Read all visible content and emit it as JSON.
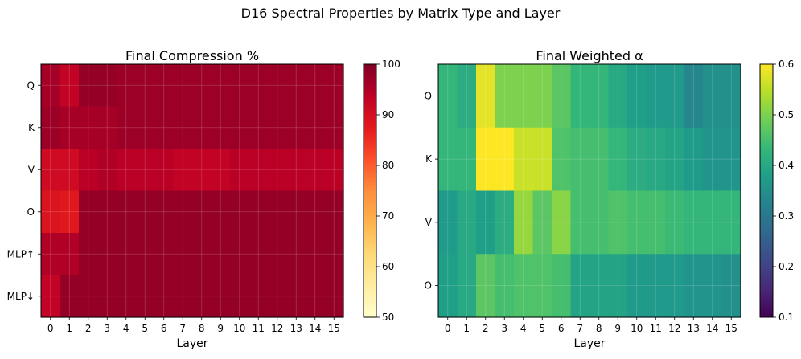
{
  "figure": {
    "suptitle": "D16 Spectral Properties by Matrix Type and Layer"
  },
  "colors": {
    "ylorrd": [
      "#ffffcc",
      "#ffeda0",
      "#fed976",
      "#feb24c",
      "#fd8d3c",
      "#fc4e2a",
      "#e31a1c",
      "#bd0026",
      "#800026"
    ],
    "viridis": [
      "#440154",
      "#482878",
      "#3e4989",
      "#31688e",
      "#26828e",
      "#1f9e89",
      "#35b779",
      "#6ece58",
      "#b5de2b",
      "#fde725"
    ],
    "grid": "#ffffff"
  },
  "chart_data": [
    {
      "type": "heatmap",
      "title": "Final Compression %",
      "xlabel": "Layer",
      "ylabel": "",
      "x": [
        "0",
        "1",
        "2",
        "3",
        "4",
        "5",
        "6",
        "7",
        "8",
        "9",
        "10",
        "11",
        "12",
        "13",
        "14",
        "15"
      ],
      "y": [
        "Q",
        "K",
        "V",
        "O",
        "MLP↑",
        "MLP↓"
      ],
      "colormap": "YlOrRd",
      "vmin": 50,
      "vmax": 100,
      "colorbar_ticks": [
        "50",
        "60",
        "70",
        "80",
        "90",
        "100"
      ],
      "grid": true,
      "values": [
        [
          96,
          93,
          98,
          98,
          97,
          97,
          97,
          97,
          97,
          97,
          97,
          97,
          97,
          97,
          97,
          97
        ],
        [
          97,
          96,
          96,
          96,
          97,
          97,
          97,
          97,
          97,
          97,
          97,
          97,
          97,
          97,
          97,
          97
        ],
        [
          91,
          91,
          94,
          95,
          94,
          94,
          94,
          93,
          93,
          93,
          94,
          94,
          94,
          94,
          94,
          94
        ],
        [
          89,
          88,
          98,
          98,
          98,
          98,
          98,
          98,
          98,
          98,
          98,
          98,
          98,
          98,
          98,
          98
        ],
        [
          95,
          95,
          98,
          98,
          98,
          98,
          98,
          98,
          98,
          98,
          98,
          98,
          98,
          98,
          98,
          98
        ],
        [
          93,
          98,
          98,
          98,
          98,
          98,
          98,
          98,
          98,
          98,
          98,
          98,
          98,
          98,
          98,
          98
        ]
      ]
    },
    {
      "type": "heatmap",
      "title": "Final Weighted α",
      "xlabel": "Layer",
      "ylabel": "",
      "x": [
        "0",
        "1",
        "2",
        "3",
        "4",
        "5",
        "6",
        "7",
        "8",
        "9",
        "10",
        "11",
        "12",
        "13",
        "14",
        "15"
      ],
      "y": [
        "Q",
        "K",
        "V",
        "O"
      ],
      "colormap": "viridis",
      "vmin": 0.1,
      "vmax": 0.6,
      "colorbar_ticks": [
        "0.1",
        "0.2",
        "0.3",
        "0.4",
        "0.5",
        "0.6"
      ],
      "grid": true,
      "values": [
        [
          0.43,
          0.41,
          0.58,
          0.5,
          0.5,
          0.5,
          0.47,
          0.43,
          0.43,
          0.4,
          0.38,
          0.37,
          0.37,
          0.33,
          0.35,
          0.35
        ],
        [
          0.43,
          0.43,
          0.6,
          0.6,
          0.56,
          0.56,
          0.46,
          0.45,
          0.45,
          0.43,
          0.41,
          0.4,
          0.39,
          0.37,
          0.36,
          0.36
        ],
        [
          0.37,
          0.4,
          0.38,
          0.41,
          0.52,
          0.47,
          0.51,
          0.45,
          0.45,
          0.46,
          0.45,
          0.45,
          0.44,
          0.43,
          0.43,
          0.43
        ],
        [
          0.38,
          0.4,
          0.47,
          0.45,
          0.46,
          0.46,
          0.45,
          0.39,
          0.39,
          0.39,
          0.37,
          0.37,
          0.37,
          0.36,
          0.36,
          0.35
        ]
      ]
    }
  ]
}
